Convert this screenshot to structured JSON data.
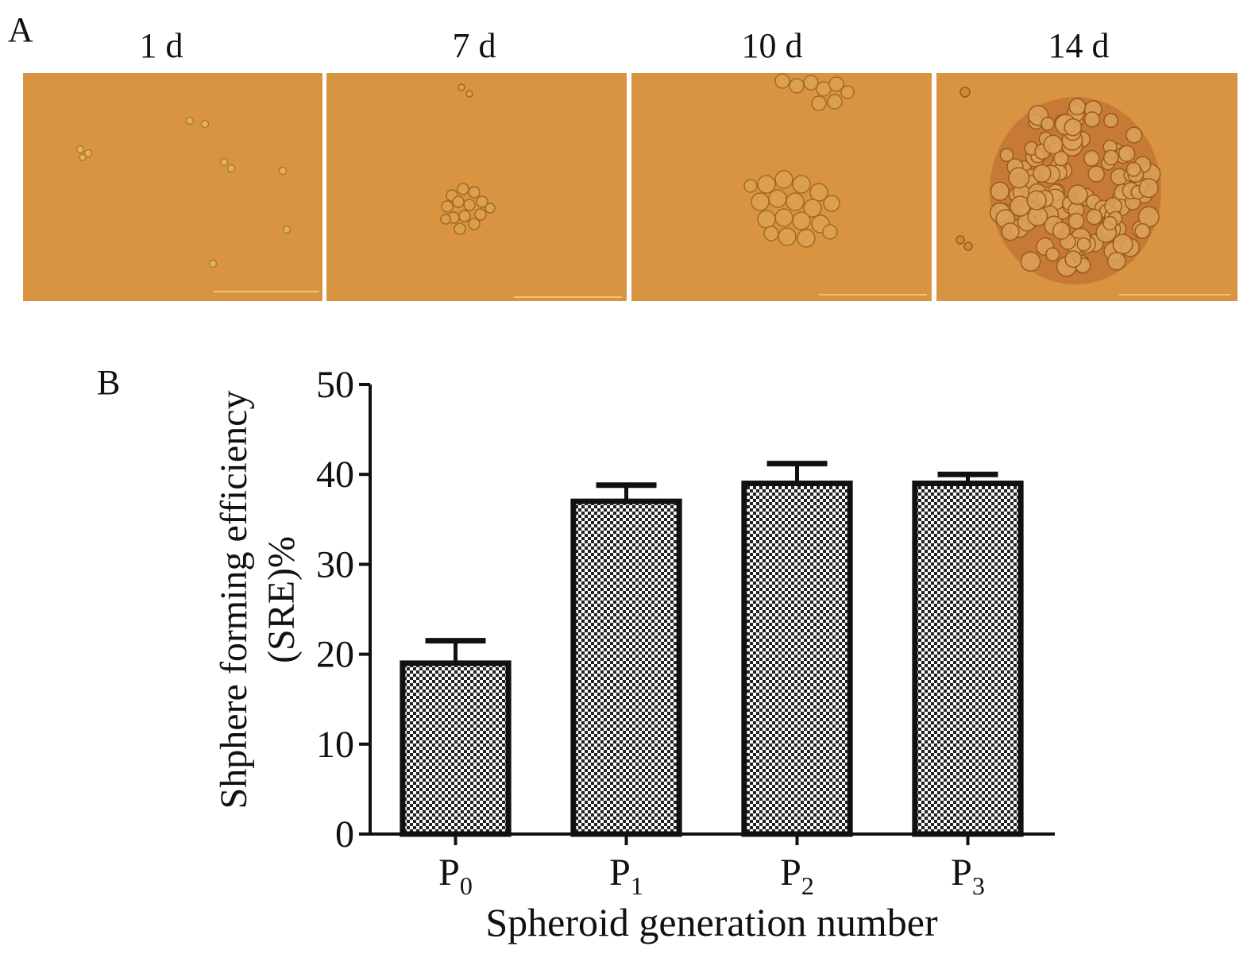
{
  "panel_a": {
    "letter": "A",
    "images": [
      {
        "label": "1 d",
        "content": "scattered-single-cells"
      },
      {
        "label": "7 d",
        "content": "small-spheroid"
      },
      {
        "label": "10 d",
        "content": "medium-spheroid"
      },
      {
        "label": "14 d",
        "content": "large-spheroid"
      }
    ],
    "colors": {
      "background": "#d99442",
      "cell_outline": "#a8681f",
      "scale_bar": "#f0c27a"
    }
  },
  "panel_b": {
    "letter": "B"
  },
  "chart_data": {
    "type": "bar",
    "categories": [
      "P0",
      "P1",
      "P2",
      "P3"
    ],
    "category_display": [
      {
        "main": "P",
        "sub": "0"
      },
      {
        "main": "P",
        "sub": "1"
      },
      {
        "main": "P",
        "sub": "2"
      },
      {
        "main": "P",
        "sub": "3"
      }
    ],
    "values": [
      19,
      37,
      39,
      39
    ],
    "errors": [
      2.5,
      1.8,
      2.2,
      1.0
    ],
    "ylim": [
      0,
      50
    ],
    "yticks": [
      0,
      10,
      20,
      30,
      40,
      50
    ],
    "ylabel_line1": "Shphere forming efficiency",
    "ylabel_line2": "(SRE)%",
    "xlabel": "Spheroid generation number",
    "grid": false,
    "legend": "none",
    "bar_fill": "checkered",
    "colors": {
      "bar_edge": "#111111",
      "checker_dark": "#222222",
      "checker_light": "#ffffff"
    }
  }
}
